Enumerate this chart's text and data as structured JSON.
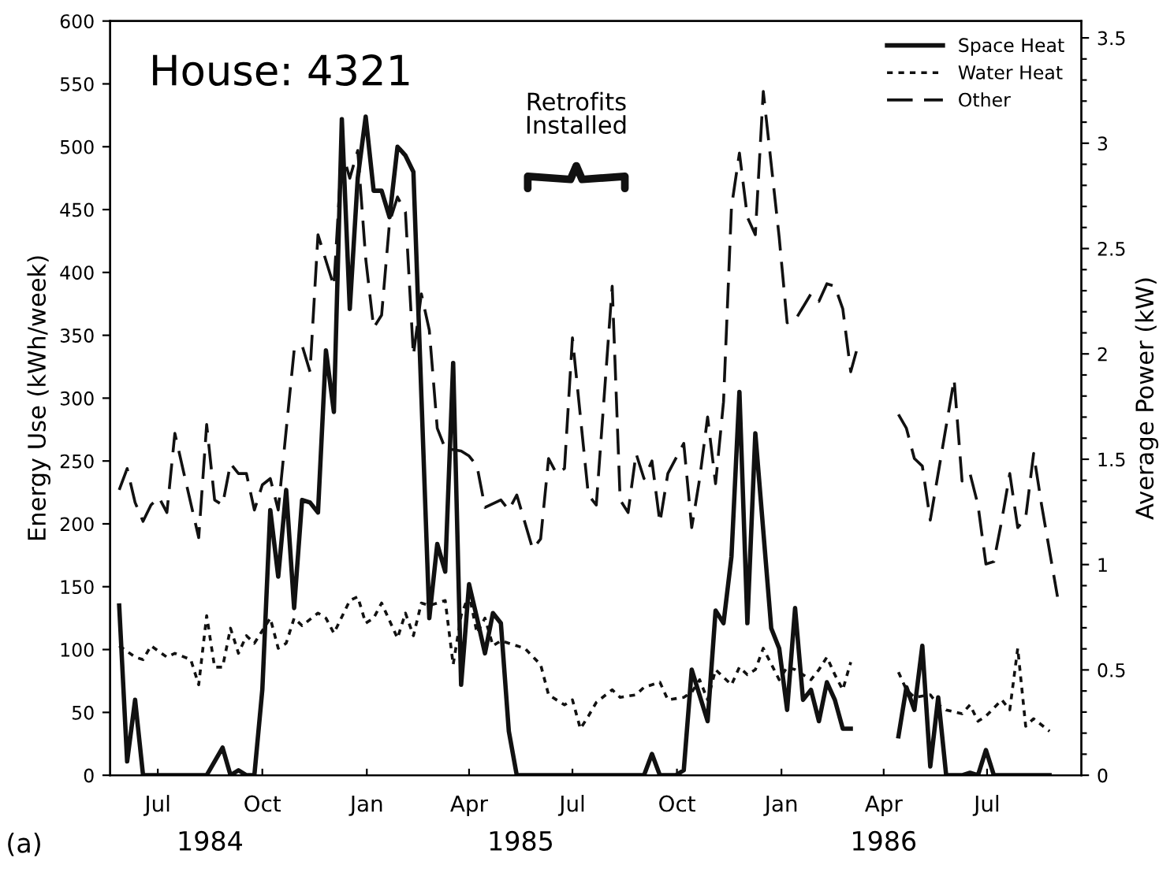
{
  "chart_data": {
    "type": "line",
    "title": "House: 4321",
    "xlabel": null,
    "ylabel": "Energy Use (kWh/week)",
    "y2label": "Average Power (kW)",
    "xlim": [
      "1984-05-20",
      "1986-09-22"
    ],
    "xticks": [
      {
        "value": "1984-07-01",
        "label": "Jul"
      },
      {
        "value": "1984-10-01",
        "label": "Oct"
      },
      {
        "value": "1985-01-01",
        "label": "Jan"
      },
      {
        "value": "1985-04-01",
        "label": "Apr"
      },
      {
        "value": "1985-07-01",
        "label": "Jul"
      },
      {
        "value": "1985-10-01",
        "label": "Oct"
      },
      {
        "value": "1986-01-01",
        "label": "Jan"
      },
      {
        "value": "1986-04-01",
        "label": "Apr"
      },
      {
        "value": "1986-07-01",
        "label": "Jul"
      }
    ],
    "ylim": [
      0,
      600
    ],
    "yticks": [
      0,
      50,
      100,
      150,
      200,
      250,
      300,
      350,
      400,
      450,
      500,
      550,
      600
    ],
    "y2lim": [
      0,
      3.58
    ],
    "y2ticks": [
      0,
      {
        "value": 0.1,
        "label": null
      },
      {
        "value": 0.2,
        "label": null
      },
      {
        "value": 0.3,
        "label": null
      },
      {
        "value": 0.4,
        "label": null
      },
      0.5,
      {
        "value": 0.6,
        "label": null
      },
      {
        "value": 0.7,
        "label": null
      },
      {
        "value": 0.8,
        "label": null
      },
      {
        "value": 0.9,
        "label": null
      },
      1,
      {
        "value": 1.1,
        "label": null
      },
      {
        "value": 1.2,
        "label": null
      },
      {
        "value": 1.3,
        "label": null
      },
      {
        "value": 1.4,
        "label": null
      },
      1.5,
      {
        "value": 1.6,
        "label": null
      },
      {
        "value": 1.7,
        "label": null
      },
      {
        "value": 1.8,
        "label": null
      },
      {
        "value": 1.9,
        "label": null
      },
      2,
      {
        "value": 2.1,
        "label": null
      },
      {
        "value": 2.2,
        "label": null
      },
      {
        "value": 2.3,
        "label": null
      },
      {
        "value": 2.4,
        "label": null
      },
      2.5,
      {
        "value": 2.6,
        "label": null
      },
      {
        "value": 2.7,
        "label": null
      },
      {
        "value": 2.8,
        "label": null
      },
      {
        "value": 2.9,
        "label": null
      },
      3,
      {
        "value": 3.1,
        "label": null
      },
      {
        "value": 3.2,
        "label": null
      },
      {
        "value": 3.3,
        "label": null
      },
      {
        "value": 3.4,
        "label": null
      },
      3.5
    ],
    "grid": false,
    "legend": "top right",
    "annotations": [
      "Retrofits\nInstalled",
      "(a)",
      "1984",
      "1985",
      "1986"
    ],
    "series": [
      {
        "name": "Space Heat",
        "color": "#111111",
        "line_style": "solid",
        "x": [
          "1984-05-28",
          "1984-06-04",
          "1984-06-11",
          "1984-06-18",
          "1984-08-13",
          "1984-08-27",
          "1984-09-03",
          "1984-09-10",
          "1984-09-17",
          "1984-09-24",
          "1984-10-01",
          "1984-10-08",
          "1984-10-15",
          "1984-10-22",
          "1984-10-29",
          "1984-11-05",
          "1984-11-12",
          "1984-11-19",
          "1984-11-26",
          "1984-12-03",
          "1984-12-10",
          "1984-12-17",
          "1984-12-24",
          "1984-12-31",
          "1985-01-07",
          "1985-01-14",
          "1985-01-21",
          "1985-01-28",
          "1985-02-04",
          "1985-02-11",
          "1985-02-25",
          "1985-03-04",
          "1985-03-11",
          "1985-03-18",
          "1985-03-25",
          "1985-04-01",
          "1985-04-08",
          "1985-04-15",
          "1985-04-22",
          "1985-04-29",
          "1985-05-06",
          "1985-05-13",
          "1985-09-02",
          "1985-09-09",
          "1985-09-16",
          "1985-09-30",
          "1985-10-07",
          "1985-10-14",
          "1985-10-28",
          "1985-11-04",
          "1985-11-11",
          "1985-11-18",
          "1985-11-25",
          "1985-12-02",
          "1985-12-09",
          "1985-12-23",
          "1985-12-30",
          "1986-01-06",
          "1986-01-13",
          "1986-01-20",
          "1986-01-27",
          "1986-02-03",
          "1986-02-10",
          "1986-02-17",
          "1986-02-24",
          "1986-03-03",
          "1986-03-24",
          "1986-04-14",
          "1986-04-21",
          "1986-04-28",
          "1986-05-05",
          "1986-05-12",
          "1986-05-19",
          "1986-05-26",
          "1986-06-09",
          "1986-06-16",
          "1986-06-23",
          "1986-06-30",
          "1986-07-07",
          "1986-08-25"
        ],
        "values": [
          135,
          11,
          60,
          0,
          0,
          22,
          0,
          4,
          0,
          0,
          68,
          211,
          158,
          227,
          133,
          219,
          217,
          209,
          338,
          289,
          522,
          371,
          475,
          524,
          465,
          465,
          444,
          500,
          493,
          480,
          125,
          184,
          162,
          328,
          72,
          152,
          125,
          97,
          129,
          121,
          35,
          0,
          0,
          17,
          0,
          0,
          4,
          84,
          43,
          131,
          121,
          174,
          305,
          121,
          272,
          117,
          101,
          52,
          133,
          60,
          68,
          43,
          74,
          60,
          37,
          37,
          null,
          31,
          70,
          52,
          103,
          7,
          62,
          0,
          0,
          2,
          0,
          20,
          0,
          0
        ]
      },
      {
        "name": "Water Heat",
        "color": "#111111",
        "line_style": "dotted",
        "x": [
          "1984-05-28",
          "1984-06-11",
          "1984-06-18",
          "1984-06-25",
          "1984-07-09",
          "1984-07-16",
          "1984-07-30",
          "1984-08-06",
          "1984-08-13",
          "1984-08-20",
          "1984-08-27",
          "1984-09-03",
          "1984-09-10",
          "1984-09-17",
          "1984-09-24",
          "1984-10-08",
          "1984-10-15",
          "1984-10-22",
          "1984-10-29",
          "1984-11-05",
          "1984-11-19",
          "1984-11-26",
          "1984-12-03",
          "1984-12-17",
          "1984-12-24",
          "1984-12-31",
          "1985-01-07",
          "1985-01-14",
          "1985-01-28",
          "1985-02-04",
          "1985-02-11",
          "1985-02-18",
          "1985-02-25",
          "1985-03-11",
          "1985-03-18",
          "1985-03-25",
          "1985-04-01",
          "1985-04-08",
          "1985-04-15",
          "1985-04-22",
          "1985-04-29",
          "1985-05-13",
          "1985-05-20",
          "1985-06-03",
          "1985-06-10",
          "1985-06-24",
          "1985-07-01",
          "1985-07-08",
          "1985-07-15",
          "1985-07-22",
          "1985-08-05",
          "1985-08-12",
          "1985-08-26",
          "1985-09-02",
          "1985-09-09",
          "1985-09-16",
          "1985-09-23",
          "1985-10-07",
          "1985-10-14",
          "1985-10-21",
          "1985-10-28",
          "1985-11-04",
          "1985-11-18",
          "1985-11-25",
          "1985-12-02",
          "1985-12-09",
          "1985-12-16",
          "1985-12-30",
          "1986-01-06",
          "1986-01-13",
          "1986-01-27",
          "1986-02-03",
          "1986-02-10",
          "1986-02-17",
          "1986-02-24",
          "1986-03-03",
          "1986-03-24",
          "1986-04-14",
          "1986-04-21",
          "1986-04-28",
          "1986-05-12",
          "1986-05-19",
          "1986-05-26",
          "1986-06-09",
          "1986-06-16",
          "1986-06-23",
          "1986-06-30",
          "1986-07-14",
          "1986-07-21",
          "1986-07-28",
          "1986-08-04",
          "1986-08-11",
          "1986-08-25"
        ],
        "values": [
          103,
          94,
          92,
          103,
          94,
          97,
          92,
          72,
          127,
          86,
          86,
          117,
          97,
          111,
          105,
          125,
          101,
          105,
          125,
          119,
          129,
          125,
          113,
          139,
          142,
          121,
          125,
          137,
          109,
          129,
          111,
          137,
          135,
          139,
          88,
          127,
          144,
          113,
          125,
          103,
          107,
          103,
          101,
          88,
          64,
          56,
          60,
          37,
          47,
          58,
          68,
          62,
          64,
          70,
          72,
          74,
          60,
          62,
          66,
          76,
          60,
          84,
          72,
          86,
          80,
          84,
          101,
          76,
          86,
          84,
          76,
          84,
          94,
          80,
          68,
          90,
          null,
          82,
          68,
          62,
          64,
          56,
          52,
          49,
          56,
          43,
          47,
          60,
          52,
          101,
          39,
          45,
          35
        ]
      },
      {
        "name": "Other",
        "color": "#111111",
        "line_style": "dashed",
        "x": [
          "1984-05-28",
          "1984-06-04",
          "1984-06-11",
          "1984-06-18",
          "1984-06-25",
          "1984-07-02",
          "1984-07-09",
          "1984-07-16",
          "1984-07-23",
          "1984-08-06",
          "1984-08-13",
          "1984-08-20",
          "1984-08-27",
          "1984-09-03",
          "1984-09-10",
          "1984-09-17",
          "1984-09-24",
          "1984-10-01",
          "1984-10-08",
          "1984-10-15",
          "1984-10-29",
          "1984-11-05",
          "1984-11-12",
          "1984-11-19",
          "1984-12-03",
          "1984-12-10",
          "1984-12-17",
          "1984-12-24",
          "1984-12-31",
          "1985-01-07",
          "1985-01-14",
          "1985-01-21",
          "1985-01-28",
          "1985-02-04",
          "1985-02-11",
          "1985-02-18",
          "1985-02-25",
          "1985-03-04",
          "1985-03-11",
          "1985-03-25",
          "1985-04-01",
          "1985-04-08",
          "1985-04-15",
          "1985-04-29",
          "1985-05-06",
          "1985-05-13",
          "1985-05-27",
          "1985-06-03",
          "1985-06-10",
          "1985-06-17",
          "1985-06-24",
          "1985-07-01",
          "1985-07-15",
          "1985-07-22",
          "1985-08-05",
          "1985-08-12",
          "1985-08-19",
          "1985-08-26",
          "1985-09-02",
          "1985-09-09",
          "1985-09-16",
          "1985-09-23",
          "1985-10-07",
          "1985-10-14",
          "1985-10-21",
          "1985-10-28",
          "1985-11-04",
          "1985-11-11",
          "1985-11-18",
          "1985-11-25",
          "1985-12-02",
          "1985-12-09",
          "1985-12-16",
          "1985-12-30",
          "1986-01-06",
          "1986-01-13",
          "1986-01-27",
          "1986-02-03",
          "1986-02-10",
          "1986-02-17",
          "1986-02-24",
          "1986-03-03",
          "1986-03-10",
          "1986-03-24",
          "1986-04-14",
          "1986-04-21",
          "1986-04-28",
          "1986-05-05",
          "1986-05-12",
          "1986-06-02",
          "1986-06-09",
          "1986-06-16",
          "1986-06-23",
          "1986-06-30",
          "1986-07-07",
          "1986-07-14",
          "1986-07-21",
          "1986-07-28",
          "1986-08-04",
          "1986-08-11",
          "1986-08-18",
          "1986-09-01"
        ],
        "values": [
          227,
          244,
          217,
          202,
          215,
          221,
          209,
          272,
          244,
          189,
          279,
          219,
          215,
          248,
          240,
          240,
          211,
          231,
          236,
          211,
          338,
          342,
          321,
          430,
          389,
          497,
          475,
          497,
          411,
          356,
          366,
          440,
          460,
          448,
          334,
          383,
          354,
          276,
          260,
          258,
          254,
          246,
          213,
          219,
          211,
          223,
          180,
          188,
          252,
          240,
          244,
          348,
          223,
          215,
          389,
          219,
          209,
          256,
          236,
          250,
          201,
          240,
          264,
          197,
          236,
          285,
          232,
          297,
          452,
          495,
          444,
          430,
          544,
          428,
          360,
          362,
          383,
          377,
          391,
          389,
          371,
          321,
          344,
          null,
          287,
          276,
          252,
          246,
          203,
          315,
          234,
          240,
          215,
          168,
          170,
          203,
          240,
          197,
          205,
          256,
          215,
          142
        ]
      }
    ]
  }
}
